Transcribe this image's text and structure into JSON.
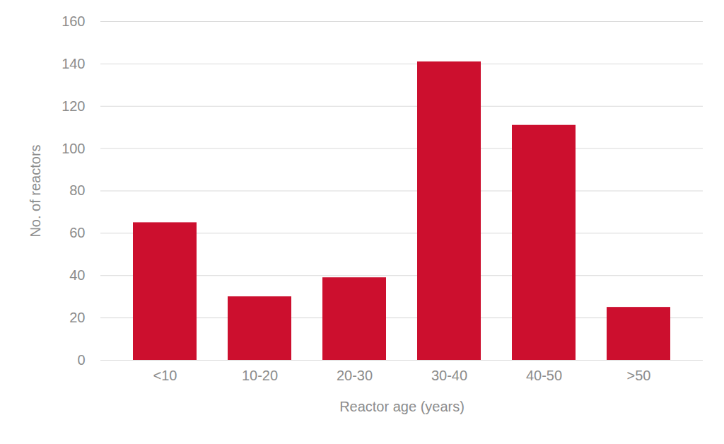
{
  "chart_data": {
    "type": "bar",
    "x_label": "Reactor age (years)",
    "y_label": "No. of reactors",
    "categories": [
      "<10",
      "10-20",
      "20-30",
      "30-40",
      "40-50",
      ">50"
    ],
    "values": [
      65,
      30,
      39,
      141,
      111,
      25
    ],
    "color": "#cc0f2e",
    "ylim": [
      0,
      160
    ],
    "yticks": [
      0,
      20,
      40,
      60,
      80,
      100,
      120,
      140,
      160
    ],
    "grid": true
  }
}
